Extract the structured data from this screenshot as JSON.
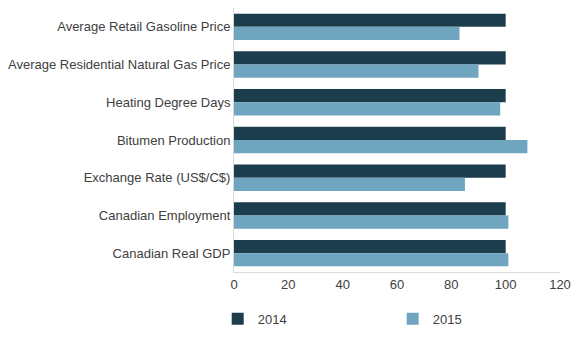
{
  "chart_data": {
    "type": "bar",
    "orientation": "horizontal",
    "categories": [
      "Average Retail Gasoline Price",
      "Average Residential Natural Gas Price",
      "Heating Degree Days",
      "Bitumen Production",
      "Exchange Rate (US$/C$)",
      "Canadian Employment",
      "Canadian Real GDP"
    ],
    "series": [
      {
        "name": "2014",
        "color": "#1c3d4c",
        "values": [
          100,
          100,
          100,
          100,
          100,
          100,
          100
        ]
      },
      {
        "name": "2015",
        "color": "#6fa5bf",
        "values": [
          83,
          90,
          98,
          108,
          85,
          101,
          101
        ]
      }
    ],
    "xlim": [
      0,
      120
    ],
    "xticks": [
      0,
      20,
      40,
      60,
      80,
      100,
      120
    ],
    "grid": false,
    "legend": "bottom"
  }
}
